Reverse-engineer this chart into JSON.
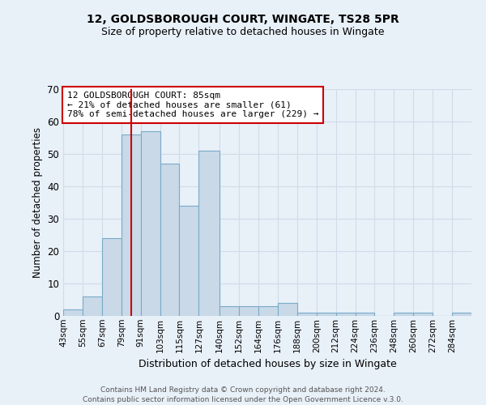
{
  "title": "12, GOLDSBOROUGH COURT, WINGATE, TS28 5PR",
  "subtitle": "Size of property relative to detached houses in Wingate",
  "xlabel": "Distribution of detached houses by size in Wingate",
  "ylabel": "Number of detached properties",
  "bin_labels": [
    "43sqm",
    "55sqm",
    "67sqm",
    "79sqm",
    "91sqm",
    "103sqm",
    "115sqm",
    "127sqm",
    "140sqm",
    "152sqm",
    "164sqm",
    "176sqm",
    "188sqm",
    "200sqm",
    "212sqm",
    "224sqm",
    "236sqm",
    "248sqm",
    "260sqm",
    "272sqm",
    "284sqm"
  ],
  "bin_edges": [
    43,
    55,
    67,
    79,
    91,
    103,
    115,
    127,
    140,
    152,
    164,
    176,
    188,
    200,
    212,
    224,
    236,
    248,
    260,
    272,
    284,
    296
  ],
  "bar_heights": [
    2,
    6,
    24,
    56,
    57,
    47,
    34,
    51,
    3,
    3,
    3,
    4,
    1,
    1,
    1,
    1,
    0,
    1,
    1,
    0,
    1
  ],
  "bar_color": "#c9d9e8",
  "bar_edge_color": "#7aaac8",
  "grid_color": "#d0dce8",
  "background_color": "#e8f0f8",
  "vline_x": 85,
  "vline_color": "#cc0000",
  "annotation_title": "12 GOLDSBOROUGH COURT: 85sqm",
  "annotation_line1": "← 21% of detached houses are smaller (61)",
  "annotation_line2": "78% of semi-detached houses are larger (229) →",
  "annotation_box_color": "#ffffff",
  "annotation_box_edge": "#cc0000",
  "ylim": [
    0,
    70
  ],
  "yticks": [
    0,
    10,
    20,
    30,
    40,
    50,
    60,
    70
  ],
  "footer1": "Contains HM Land Registry data © Crown copyright and database right 2024.",
  "footer2": "Contains public sector information licensed under the Open Government Licence v.3.0."
}
